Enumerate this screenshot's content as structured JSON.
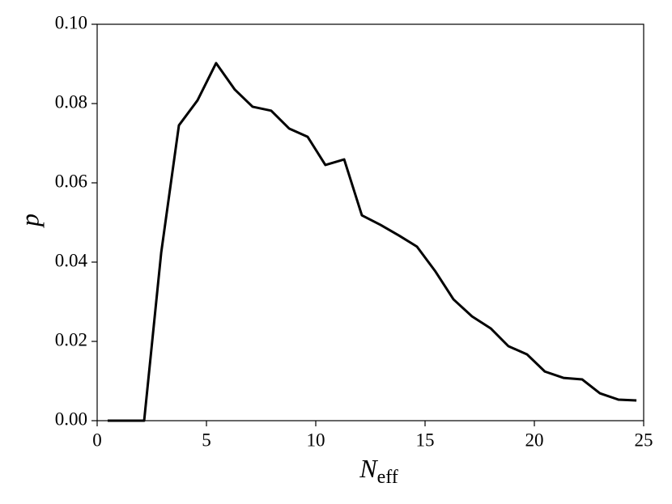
{
  "chart_data": {
    "type": "line",
    "xlabel": {
      "symbol": "N",
      "subscript": "eff"
    },
    "ylabel": "p",
    "x": [
      0.48,
      2.15,
      2.93,
      3.74,
      4.59,
      5.44,
      6.3,
      7.11,
      7.96,
      8.78,
      9.63,
      10.44,
      11.3,
      12.11,
      12.96,
      13.81,
      14.63,
      15.48,
      16.3,
      17.15,
      18.0,
      18.81,
      19.67,
      20.48,
      21.33,
      22.19,
      23.0,
      23.85,
      24.67
    ],
    "values": [
      0,
      0,
      0.0424,
      0.0745,
      0.0808,
      0.0902,
      0.0835,
      0.0792,
      0.0782,
      0.0737,
      0.0716,
      0.0645,
      0.0659,
      0.0518,
      0.0494,
      0.0467,
      0.0439,
      0.0376,
      0.0306,
      0.0263,
      0.0233,
      0.0188,
      0.0167,
      0.0124,
      0.0108,
      0.0104,
      0.0069,
      0.0053,
      0.0051
    ],
    "color": "#000000",
    "xlim": [
      0,
      25
    ],
    "xticks": [
      0,
      5,
      10,
      15,
      20,
      25
    ],
    "ylim": [
      0,
      0.1
    ],
    "yticks": [
      {
        "value": 0,
        "label": "0.00"
      },
      {
        "value": 0.02,
        "label": "0.02"
      },
      {
        "value": 0.04,
        "label": "0.04"
      },
      {
        "value": 0.06,
        "label": "0.06"
      },
      {
        "value": 0.08,
        "label": "0.08"
      },
      {
        "value": 0.1,
        "label": "0.10"
      }
    ],
    "grid": false
  }
}
